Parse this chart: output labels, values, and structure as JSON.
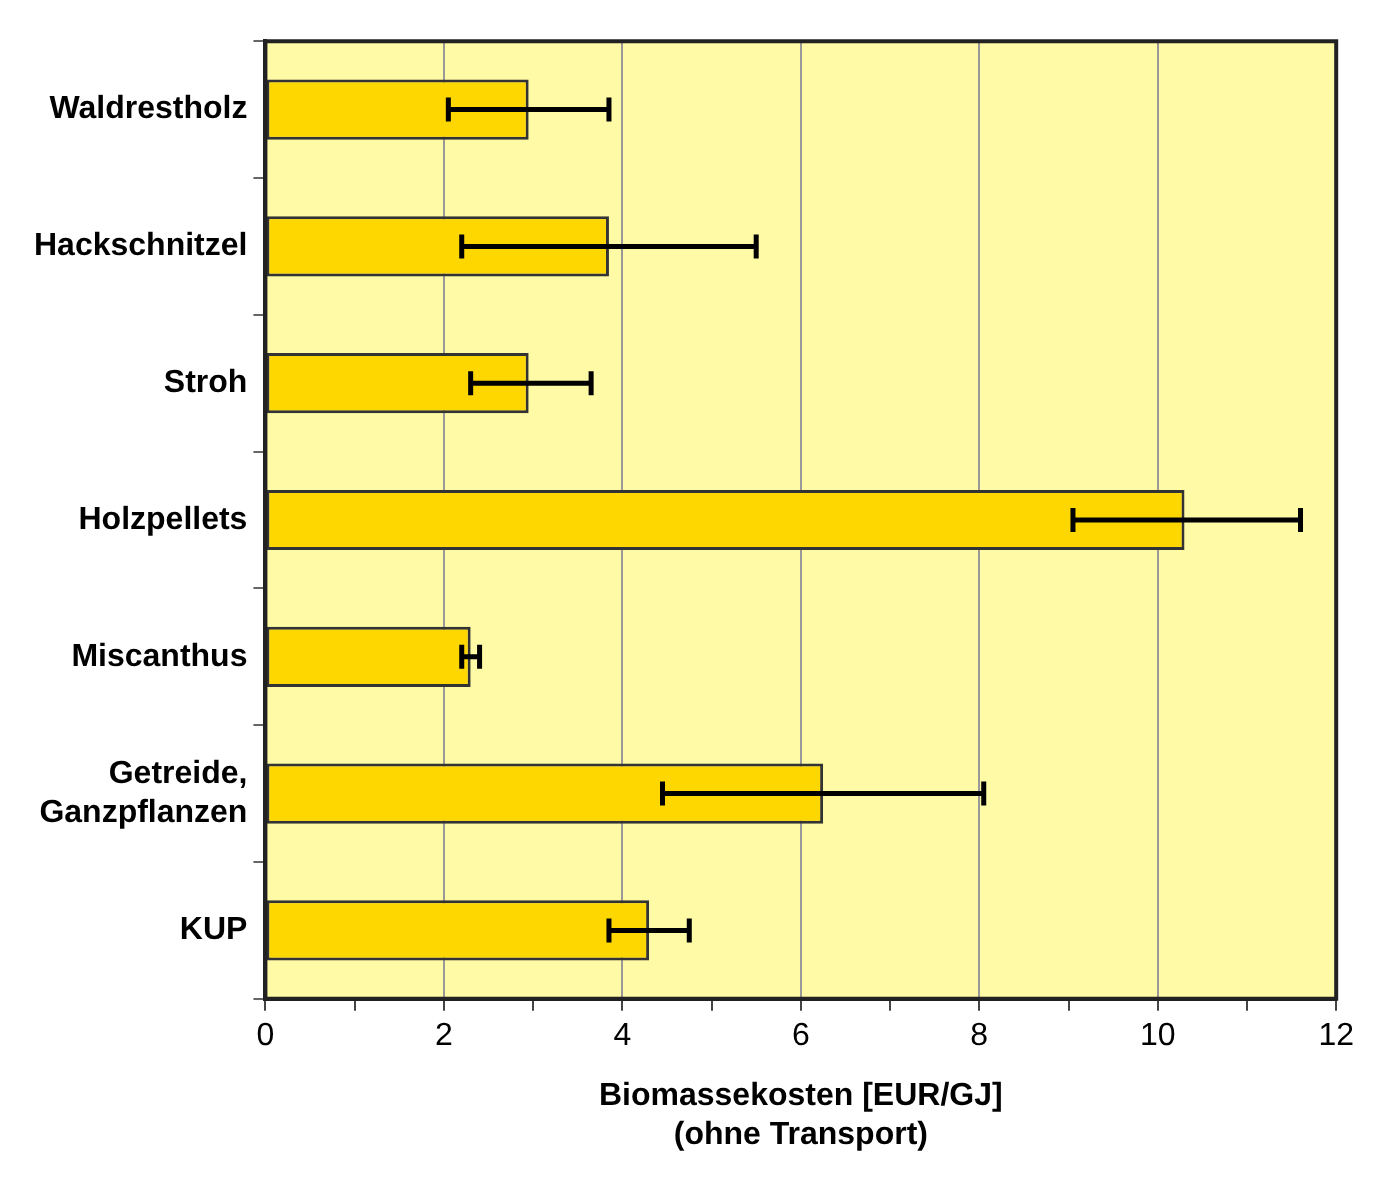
{
  "chart_data": {
    "type": "bar",
    "orientation": "horizontal",
    "xlabel": "Biomassekosten [EUR/GJ]\n(ohne Transport)",
    "categories": [
      "Waldrestholz",
      "Hackschnitzel",
      "Stroh",
      "Holzpellets",
      "Miscanthus",
      "Getreide, Ganzpflanzen",
      "KUP"
    ],
    "values": [
      2.95,
      3.85,
      2.95,
      10.3,
      2.3,
      6.25,
      4.3
    ],
    "errors": [
      [
        2.05,
        3.85
      ],
      [
        2.2,
        5.5
      ],
      [
        2.3,
        3.65
      ],
      [
        9.05,
        11.6
      ],
      [
        2.2,
        2.4
      ],
      [
        4.45,
        8.05
      ],
      [
        3.85,
        4.75
      ]
    ],
    "color": "#ffd700",
    "xlim": [
      0,
      12
    ],
    "xticks": [
      0,
      {
        "value": 1,
        "label": null
      },
      2,
      {
        "value": 3,
        "label": null
      },
      4,
      {
        "value": 5,
        "label": null
      },
      6,
      {
        "value": 7,
        "label": null
      },
      8,
      {
        "value": 9,
        "label": null
      },
      10,
      {
        "value": 11,
        "label": null
      },
      12
    ],
    "grid": "x"
  }
}
